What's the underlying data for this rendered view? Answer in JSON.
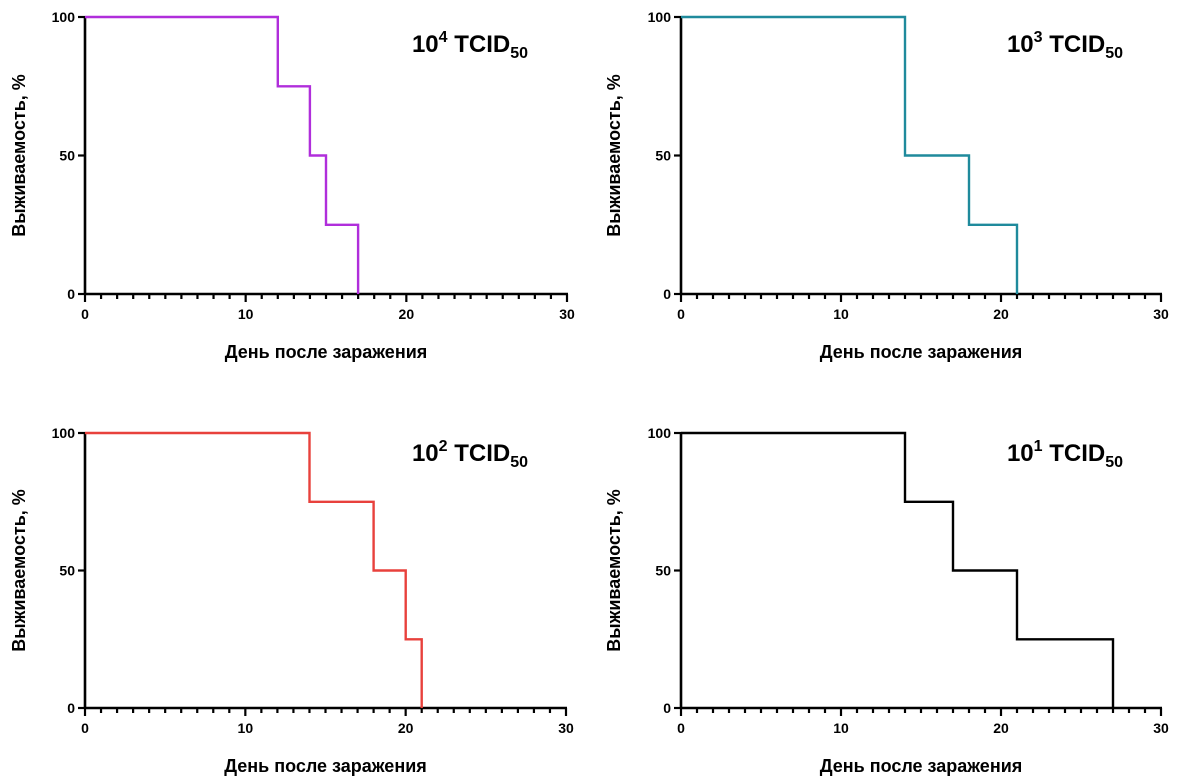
{
  "chart_data": [
    {
      "type": "line",
      "step": true,
      "title": {
        "base": "10",
        "sup": "4",
        "main": " TCID",
        "sub": "50"
      },
      "xlabel": "День после заражения",
      "ylabel": "Выживаемость, %",
      "xlim": [
        0,
        30
      ],
      "ylim": [
        0,
        100
      ],
      "xticks": [
        0,
        10,
        20,
        30
      ],
      "yticks": [
        0,
        50,
        100
      ],
      "grid": false,
      "color": "#B02EDB",
      "points": [
        [
          0,
          100
        ],
        [
          12,
          100
        ],
        [
          12,
          75
        ],
        [
          14,
          75
        ],
        [
          14,
          50
        ],
        [
          15,
          50
        ],
        [
          15,
          25
        ],
        [
          17,
          25
        ],
        [
          17,
          0
        ]
      ]
    },
    {
      "type": "line",
      "step": true,
      "title": {
        "base": "10",
        "sup": "3",
        "main": " TCID",
        "sub": "50"
      },
      "xlabel": "День после заражения",
      "ylabel": "Выживаемость, %",
      "xlim": [
        0,
        30
      ],
      "ylim": [
        0,
        100
      ],
      "xticks": [
        0,
        10,
        20,
        30
      ],
      "yticks": [
        0,
        50,
        100
      ],
      "grid": false,
      "color": "#1F8A9C",
      "points": [
        [
          0,
          100
        ],
        [
          14,
          100
        ],
        [
          14,
          50
        ],
        [
          18,
          50
        ],
        [
          18,
          25
        ],
        [
          21,
          25
        ],
        [
          21,
          0
        ]
      ]
    },
    {
      "type": "line",
      "step": true,
      "title": {
        "base": "10",
        "sup": "2",
        "main": " TCID",
        "sub": "50"
      },
      "xlabel": "День после заражения",
      "ylabel": "Выживаемость, %",
      "xlim": [
        0,
        30
      ],
      "ylim": [
        0,
        100
      ],
      "xticks": [
        0,
        10,
        20,
        30
      ],
      "yticks": [
        0,
        50,
        100
      ],
      "grid": false,
      "color": "#E8413C",
      "points": [
        [
          0,
          100
        ],
        [
          14,
          100
        ],
        [
          14,
          75
        ],
        [
          18,
          75
        ],
        [
          18,
          50
        ],
        [
          20,
          50
        ],
        [
          20,
          25
        ],
        [
          21,
          25
        ],
        [
          21,
          0
        ]
      ]
    },
    {
      "type": "line",
      "step": true,
      "title": {
        "base": "10",
        "sup": "1",
        "main": " TCID",
        "sub": "50"
      },
      "xlabel": "День после заражения",
      "ylabel": "Выживаемость, %",
      "xlim": [
        0,
        30
      ],
      "ylim": [
        0,
        100
      ],
      "xticks": [
        0,
        10,
        20,
        30
      ],
      "yticks": [
        0,
        50,
        100
      ],
      "grid": false,
      "color": "#000000",
      "points": [
        [
          0,
          100
        ],
        [
          14,
          100
        ],
        [
          14,
          75
        ],
        [
          17,
          75
        ],
        [
          17,
          50
        ],
        [
          21,
          50
        ],
        [
          21,
          25
        ],
        [
          27,
          25
        ],
        [
          27,
          0
        ]
      ]
    }
  ]
}
